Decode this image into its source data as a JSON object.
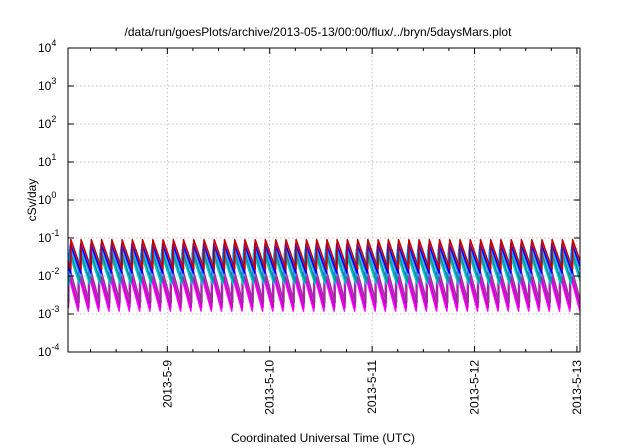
{
  "chart_data": {
    "type": "line",
    "title": "/data/run/goesPlots/archive/2013-05-13/00:00/flux/../bryn/5daysMars.plot",
    "xlabel": "Coordinated Universal Time (UTC)",
    "ylabel": "cSv/day",
    "yscale": "log",
    "ylim": [
      0.0001,
      10000
    ],
    "y_ticks": [
      {
        "base": "10",
        "exp": "-4"
      },
      {
        "base": "10",
        "exp": "-3"
      },
      {
        "base": "10",
        "exp": "-2"
      },
      {
        "base": "10",
        "exp": "-1"
      },
      {
        "base": "10",
        "exp": "0"
      },
      {
        "base": "10",
        "exp": "1"
      },
      {
        "base": "10",
        "exp": "2"
      },
      {
        "base": "10",
        "exp": "3"
      },
      {
        "base": "10",
        "exp": "4"
      }
    ],
    "x_tick_labels": [
      "2013-5-9",
      "2013-5-10",
      "2013-5-11",
      "2013-5-12",
      "2013-5-13"
    ],
    "xlim_days_relative_to_2013_5_9": [
      -0.97,
      4.03
    ],
    "grid": true,
    "sawtooth_period_days": 0.1,
    "series": [
      {
        "color": "#ff00ff",
        "values_peak_trough": [
          0.012,
          0.0012
        ]
      },
      {
        "color": "#cc00cc",
        "values_peak_trough": [
          0.015,
          0.0015
        ]
      },
      {
        "color": "#993399",
        "values_peak_trough": [
          0.02,
          0.002
        ]
      },
      {
        "color": "#00cccc",
        "values_peak_trough": [
          0.04,
          0.006
        ]
      },
      {
        "color": "#009999",
        "values_peak_trough": [
          0.05,
          0.007
        ]
      },
      {
        "color": "#3399ff",
        "values_peak_trough": [
          0.06,
          0.01
        ]
      },
      {
        "color": "#0000ff",
        "values_peak_trough": [
          0.07,
          0.012
        ]
      },
      {
        "color": "#cc0000",
        "values_peak_trough": [
          0.09,
          0.015
        ]
      }
    ]
  }
}
